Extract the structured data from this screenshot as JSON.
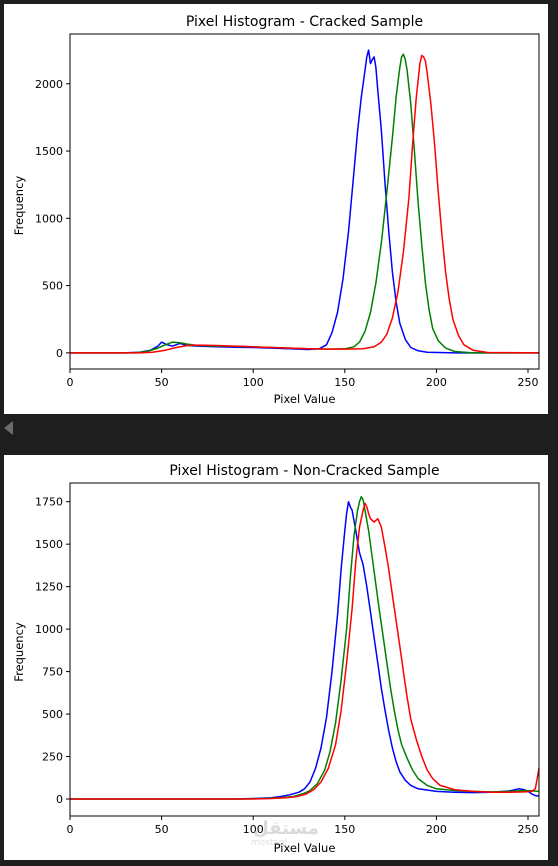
{
  "page": {
    "background": "#1e1e1e",
    "panel_background": "#ffffff"
  },
  "watermark": {
    "text": "مستقل",
    "subtext": "mostaql"
  },
  "chart_data": [
    {
      "type": "line",
      "title": "Pixel Histogram - Cracked Sample",
      "xlabel": "Pixel Value",
      "ylabel": "Frequency",
      "xlim": [
        0,
        256
      ],
      "ylim": [
        -120,
        2370
      ],
      "xticks": [
        0,
        50,
        100,
        150,
        200,
        250
      ],
      "yticks": [
        0,
        500,
        1000,
        1500,
        2000
      ],
      "grid": false,
      "legend": "none",
      "series": [
        {
          "color": "#0000ff",
          "points": [
            [
              0,
              0
            ],
            [
              30,
              0
            ],
            [
              38,
              5
            ],
            [
              44,
              20
            ],
            [
              48,
              50
            ],
            [
              50,
              80
            ],
            [
              53,
              60
            ],
            [
              56,
              50
            ],
            [
              60,
              70
            ],
            [
              64,
              55
            ],
            [
              70,
              50
            ],
            [
              80,
              45
            ],
            [
              90,
              42
            ],
            [
              100,
              40
            ],
            [
              110,
              35
            ],
            [
              120,
              30
            ],
            [
              130,
              25
            ],
            [
              136,
              30
            ],
            [
              140,
              60
            ],
            [
              143,
              150
            ],
            [
              146,
              300
            ],
            [
              149,
              550
            ],
            [
              152,
              900
            ],
            [
              155,
              1350
            ],
            [
              157,
              1650
            ],
            [
              159,
              1900
            ],
            [
              161,
              2100
            ],
            [
              162,
              2200
            ],
            [
              163,
              2250
            ],
            [
              164,
              2150
            ],
            [
              165,
              2180
            ],
            [
              166,
              2200
            ],
            [
              167,
              2120
            ],
            [
              168,
              1950
            ],
            [
              170,
              1650
            ],
            [
              172,
              1250
            ],
            [
              174,
              900
            ],
            [
              176,
              600
            ],
            [
              178,
              380
            ],
            [
              180,
              220
            ],
            [
              183,
              100
            ],
            [
              186,
              40
            ],
            [
              190,
              15
            ],
            [
              195,
              5
            ],
            [
              210,
              0
            ],
            [
              256,
              0
            ]
          ]
        },
        {
          "color": "#008000",
          "points": [
            [
              0,
              0
            ],
            [
              35,
              0
            ],
            [
              42,
              10
            ],
            [
              48,
              35
            ],
            [
              52,
              60
            ],
            [
              56,
              80
            ],
            [
              60,
              75
            ],
            [
              64,
              65
            ],
            [
              70,
              55
            ],
            [
              80,
              50
            ],
            [
              90,
              48
            ],
            [
              100,
              45
            ],
            [
              110,
              40
            ],
            [
              120,
              35
            ],
            [
              130,
              30
            ],
            [
              140,
              28
            ],
            [
              150,
              30
            ],
            [
              155,
              45
            ],
            [
              158,
              80
            ],
            [
              161,
              160
            ],
            [
              164,
              300
            ],
            [
              167,
              520
            ],
            [
              170,
              820
            ],
            [
              173,
              1200
            ],
            [
              176,
              1600
            ],
            [
              178,
              1900
            ],
            [
              180,
              2120
            ],
            [
              181,
              2200
            ],
            [
              182,
              2220
            ],
            [
              183,
              2180
            ],
            [
              184,
              2100
            ],
            [
              186,
              1850
            ],
            [
              188,
              1500
            ],
            [
              190,
              1120
            ],
            [
              192,
              800
            ],
            [
              194,
              520
            ],
            [
              196,
              320
            ],
            [
              198,
              180
            ],
            [
              201,
              90
            ],
            [
              205,
              35
            ],
            [
              210,
              10
            ],
            [
              220,
              0
            ],
            [
              256,
              0
            ]
          ]
        },
        {
          "color": "#ff0000",
          "points": [
            [
              0,
              0
            ],
            [
              38,
              0
            ],
            [
              45,
              5
            ],
            [
              52,
              20
            ],
            [
              58,
              40
            ],
            [
              64,
              55
            ],
            [
              70,
              58
            ],
            [
              80,
              55
            ],
            [
              90,
              50
            ],
            [
              100,
              45
            ],
            [
              110,
              40
            ],
            [
              120,
              35
            ],
            [
              130,
              30
            ],
            [
              140,
              28
            ],
            [
              150,
              28
            ],
            [
              160,
              30
            ],
            [
              166,
              45
            ],
            [
              170,
              80
            ],
            [
              173,
              140
            ],
            [
              176,
              260
            ],
            [
              179,
              450
            ],
            [
              182,
              750
            ],
            [
              185,
              1150
            ],
            [
              187,
              1550
            ],
            [
              189,
              1900
            ],
            [
              191,
              2150
            ],
            [
              192,
              2210
            ],
            [
              193,
              2200
            ],
            [
              194,
              2170
            ],
            [
              195,
              2080
            ],
            [
              197,
              1850
            ],
            [
              199,
              1550
            ],
            [
              201,
              1200
            ],
            [
              203,
              880
            ],
            [
              205,
              600
            ],
            [
              207,
              400
            ],
            [
              209,
              250
            ],
            [
              212,
              130
            ],
            [
              215,
              60
            ],
            [
              220,
              20
            ],
            [
              228,
              3
            ],
            [
              256,
              0
            ]
          ]
        }
      ]
    },
    {
      "type": "line",
      "title": "Pixel Histogram - Non-Cracked Sample",
      "xlabel": "Pixel Value",
      "ylabel": "Frequency",
      "xlim": [
        0,
        256
      ],
      "ylim": [
        -100,
        1860
      ],
      "xticks": [
        0,
        50,
        100,
        150,
        200,
        250
      ],
      "yticks": [
        0,
        250,
        500,
        750,
        1000,
        1250,
        1500,
        1750
      ],
      "grid": false,
      "legend": "none",
      "series": [
        {
          "color": "#0000ff",
          "points": [
            [
              0,
              0
            ],
            [
              90,
              0
            ],
            [
              100,
              3
            ],
            [
              110,
              8
            ],
            [
              115,
              15
            ],
            [
              120,
              25
            ],
            [
              125,
              40
            ],
            [
              128,
              60
            ],
            [
              131,
              100
            ],
            [
              134,
              180
            ],
            [
              137,
              300
            ],
            [
              140,
              480
            ],
            [
              143,
              750
            ],
            [
              146,
              1080
            ],
            [
              148,
              1350
            ],
            [
              150,
              1580
            ],
            [
              151,
              1680
            ],
            [
              152,
              1750
            ],
            [
              153,
              1720
            ],
            [
              154,
              1700
            ],
            [
              156,
              1580
            ],
            [
              158,
              1450
            ],
            [
              160,
              1380
            ],
            [
              162,
              1250
            ],
            [
              164,
              1100
            ],
            [
              166,
              950
            ],
            [
              168,
              800
            ],
            [
              170,
              650
            ],
            [
              172,
              520
            ],
            [
              174,
              400
            ],
            [
              176,
              300
            ],
            [
              178,
              220
            ],
            [
              180,
              160
            ],
            [
              183,
              110
            ],
            [
              186,
              80
            ],
            [
              190,
              60
            ],
            [
              200,
              45
            ],
            [
              210,
              40
            ],
            [
              220,
              38
            ],
            [
              230,
              40
            ],
            [
              240,
              48
            ],
            [
              245,
              60
            ],
            [
              248,
              55
            ],
            [
              250,
              45
            ],
            [
              252,
              30
            ],
            [
              254,
              20
            ],
            [
              256,
              18
            ]
          ]
        },
        {
          "color": "#008000",
          "points": [
            [
              0,
              0
            ],
            [
              95,
              0
            ],
            [
              105,
              3
            ],
            [
              115,
              8
            ],
            [
              122,
              15
            ],
            [
              127,
              30
            ],
            [
              131,
              50
            ],
            [
              135,
              90
            ],
            [
              139,
              170
            ],
            [
              142,
              280
            ],
            [
              145,
              450
            ],
            [
              148,
              700
            ],
            [
              151,
              1000
            ],
            [
              153,
              1300
            ],
            [
              155,
              1550
            ],
            [
              157,
              1700
            ],
            [
              158,
              1750
            ],
            [
              159,
              1780
            ],
            [
              160,
              1760
            ],
            [
              161,
              1700
            ],
            [
              163,
              1580
            ],
            [
              165,
              1420
            ],
            [
              167,
              1260
            ],
            [
              169,
              1100
            ],
            [
              171,
              950
            ],
            [
              173,
              800
            ],
            [
              175,
              650
            ],
            [
              177,
              520
            ],
            [
              179,
              410
            ],
            [
              181,
              320
            ],
            [
              184,
              240
            ],
            [
              187,
              170
            ],
            [
              190,
              120
            ],
            [
              195,
              80
            ],
            [
              200,
              60
            ],
            [
              210,
              50
            ],
            [
              220,
              45
            ],
            [
              230,
              42
            ],
            [
              240,
              45
            ],
            [
              248,
              50
            ],
            [
              252,
              48
            ],
            [
              256,
              45
            ]
          ]
        },
        {
          "color": "#ff0000",
          "points": [
            [
              0,
              0
            ],
            [
              100,
              0
            ],
            [
              110,
              3
            ],
            [
              118,
              8
            ],
            [
              124,
              15
            ],
            [
              129,
              30
            ],
            [
              133,
              55
            ],
            [
              137,
              100
            ],
            [
              141,
              180
            ],
            [
              145,
              320
            ],
            [
              148,
              520
            ],
            [
              151,
              800
            ],
            [
              154,
              1120
            ],
            [
              156,
              1400
            ],
            [
              158,
              1600
            ],
            [
              160,
              1700
            ],
            [
              161,
              1740
            ],
            [
              162,
              1720
            ],
            [
              163,
              1680
            ],
            [
              164,
              1650
            ],
            [
              166,
              1630
            ],
            [
              168,
              1650
            ],
            [
              170,
              1600
            ],
            [
              172,
              1480
            ],
            [
              174,
              1350
            ],
            [
              176,
              1200
            ],
            [
              178,
              1050
            ],
            [
              180,
              900
            ],
            [
              182,
              750
            ],
            [
              184,
              600
            ],
            [
              186,
              470
            ],
            [
              189,
              350
            ],
            [
              192,
              250
            ],
            [
              195,
              170
            ],
            [
              198,
              120
            ],
            [
              202,
              80
            ],
            [
              210,
              55
            ],
            [
              220,
              45
            ],
            [
              230,
              40
            ],
            [
              240,
              40
            ],
            [
              248,
              42
            ],
            [
              252,
              45
            ],
            [
              254,
              60
            ],
            [
              255,
              120
            ],
            [
              256,
              180
            ]
          ]
        }
      ]
    }
  ]
}
